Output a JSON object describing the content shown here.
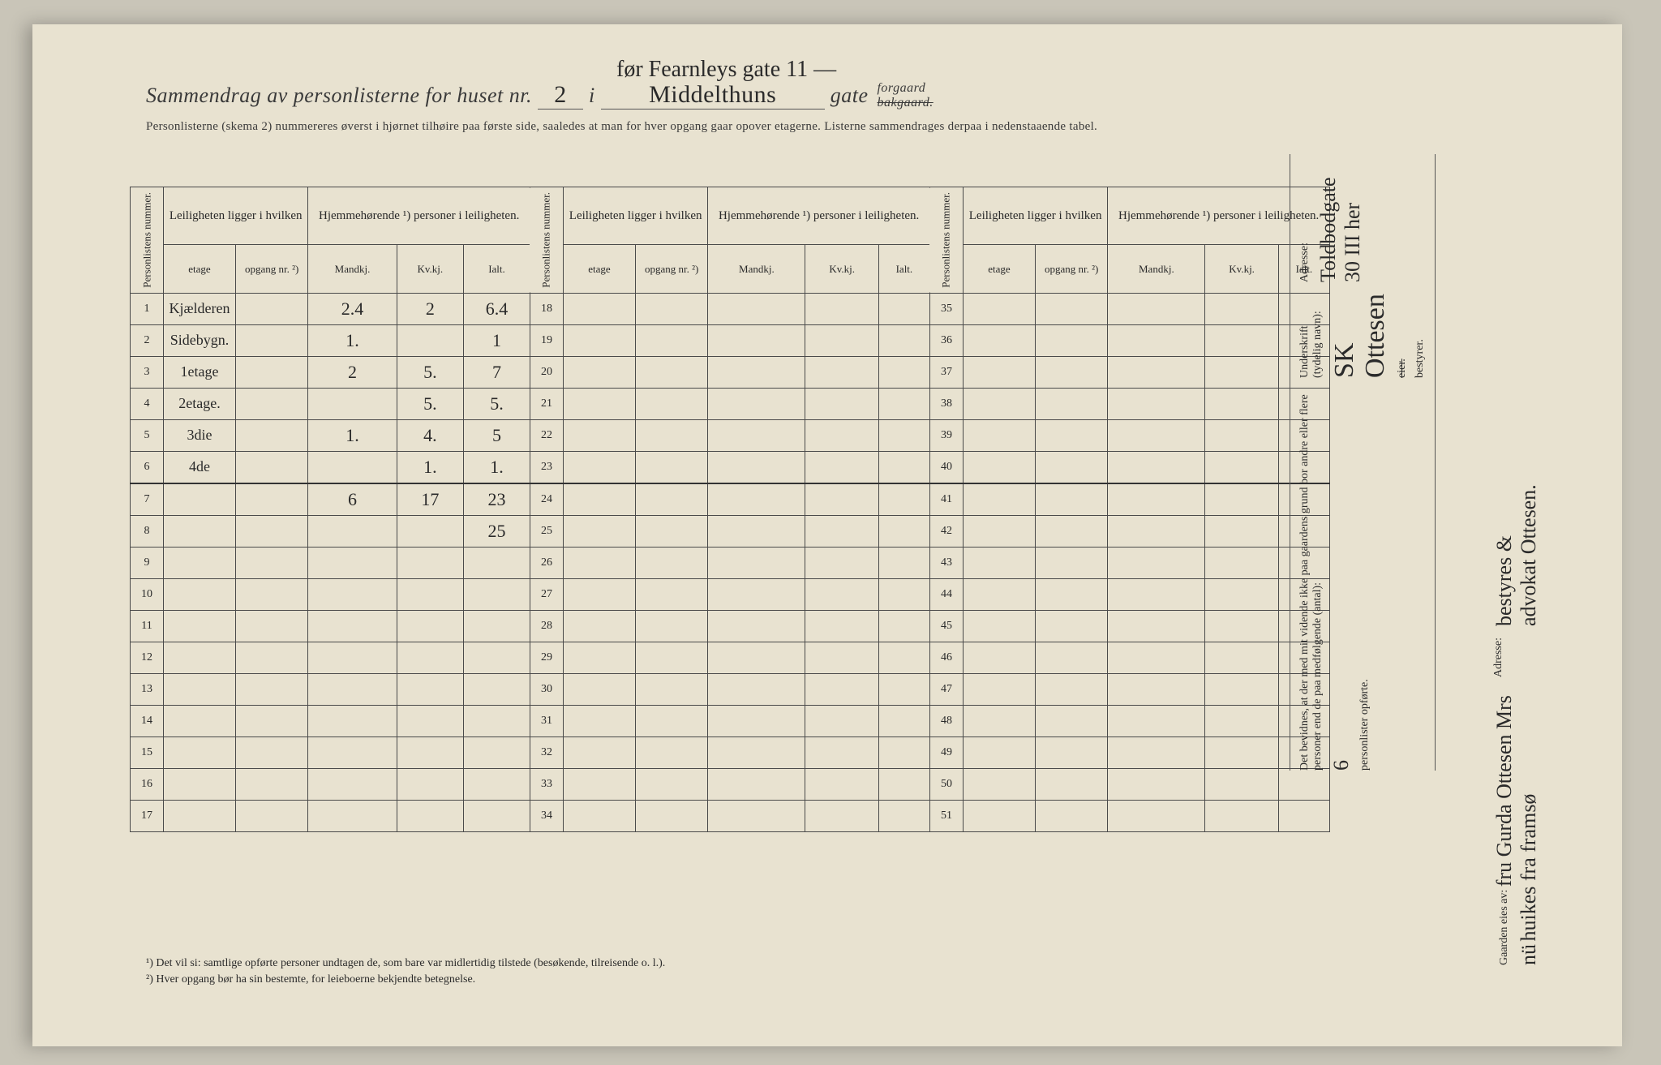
{
  "header": {
    "annotation_above": "før   Fearnleys gate 11 —",
    "title_prefix": "Sammendrag av personlisterne for huset nr.",
    "house_nr": "2",
    "sep_i": "i",
    "street_name": "Middelthuns",
    "gate_word": "gate",
    "forgaard": "forgaard",
    "bakgaard_struck": "bakgaard.",
    "subtitle": "Personlisterne (skema 2) nummereres øverst i hjørnet tilhøire paa første side, saaledes at man for hver opgang gaar opover etagerne.  Listerne sammendrages derpaa i nedenstaaende tabel."
  },
  "table": {
    "col_personlistens": "Personlistens nummer.",
    "col_leilighet": "Leiligheten ligger i hvilken",
    "col_hjemme": "Hjemmehørende ¹) personer i leiligheten.",
    "sub_etage": "etage",
    "sub_opgang": "opgang nr. ²)",
    "sub_mandkj": "Mandkj.",
    "sub_kvkj": "Kv.kj.",
    "sub_ialt": "Ialt.",
    "rows": [
      {
        "n": "1",
        "etage": "Kjælderen",
        "m": "2.4",
        "k": "2",
        "i": "6.4"
      },
      {
        "n": "2",
        "etage": "Sidebygn.",
        "m": "1.",
        "k": "",
        "i": "1"
      },
      {
        "n": "3",
        "etage": "1etage",
        "m": "2",
        "k": "5.",
        "i": "7"
      },
      {
        "n": "4",
        "etage": "2etage.",
        "m": "",
        "k": "5.",
        "i": "5."
      },
      {
        "n": "5",
        "etage": "3die",
        "m": "1.",
        "k": "4.",
        "i": "5"
      },
      {
        "n": "6",
        "etage": "4de",
        "m": "",
        "k": "1.",
        "i": "1."
      },
      {
        "n": "7",
        "etage": "",
        "m": "6",
        "k": "17",
        "i": "23",
        "sum": true
      },
      {
        "n": "8",
        "etage": "",
        "m": "",
        "k": "",
        "i": "25"
      },
      {
        "n": "9"
      },
      {
        "n": "10"
      },
      {
        "n": "11"
      },
      {
        "n": "12"
      },
      {
        "n": "13"
      },
      {
        "n": "14"
      },
      {
        "n": "15"
      },
      {
        "n": "16"
      },
      {
        "n": "17"
      }
    ],
    "rows2_start": 18,
    "rows3_start": 35
  },
  "footnotes": {
    "f1": "¹) Det vil si: samtlige opførte personer undtagen de, som bare var midlertidig tilstede (besøkende, tilreisende o. l.).",
    "f2": "²) Hver opgang bør ha sin bestemte, for leieboerne bekjendte betegnelse."
  },
  "side_right": {
    "bevidnes": "Det bevidnes, at der med mit vidende ikke paa gaardens grund bor andre eller flere personer end de paa medfølgende (antal):",
    "antal_value": "6",
    "personlister": "personlister opførte.",
    "underskrift_label": "Underskrift (tydelig navn):",
    "underskrift_value": "SK Ottesen",
    "eier_struck": "eier.",
    "bestyrer": "bestyrer.",
    "adresse_label": "Adresse:",
    "adresse_value": "Toldbodgate 30 III   her"
  },
  "side_owner": {
    "gaarden_label": "Gaarden eies av:",
    "owner_line1": "fru Gurda Ottesen  Mrs nü",
    "owner_line2": "huikes fra    framsø",
    "adresse_label": "Adresse:",
    "bestyres_line": "bestyres & advokat Ottesen."
  },
  "colors": {
    "paper": "#e8e2d0",
    "ink": "#2a2a2a",
    "border": "#4a4a4a",
    "background": "#c9c5b8"
  }
}
